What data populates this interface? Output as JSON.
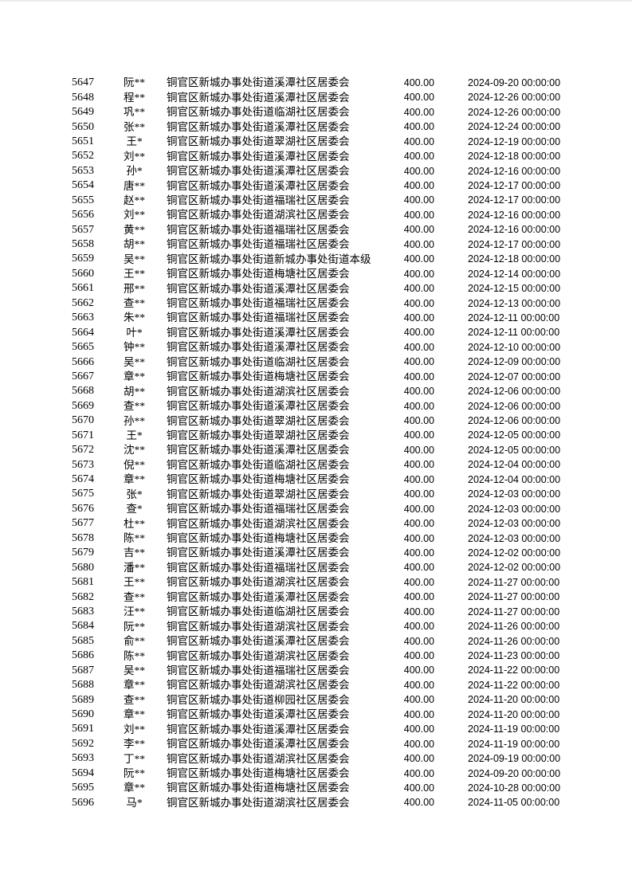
{
  "page": {
    "background_color": "#ffffff",
    "text_color": "#000000",
    "top_edge_color": "#ececec"
  },
  "table": {
    "rows": [
      {
        "id": "5647",
        "name": "阮**",
        "org": "铜官区新城办事处街道溪潭社区居委会",
        "amount": "400.00",
        "date": "2024-09-20 00:00:00"
      },
      {
        "id": "5648",
        "name": "程**",
        "org": "铜官区新城办事处街道溪潭社区居委会",
        "amount": "400.00",
        "date": "2024-12-26 00:00:00"
      },
      {
        "id": "5649",
        "name": "巩**",
        "org": "铜官区新城办事处街道临湖社区居委会",
        "amount": "400.00",
        "date": "2024-12-26 00:00:00"
      },
      {
        "id": "5650",
        "name": "张**",
        "org": "铜官区新城办事处街道溪潭社区居委会",
        "amount": "400.00",
        "date": "2024-12-24 00:00:00"
      },
      {
        "id": "5651",
        "name": "王*",
        "org": "铜官区新城办事处街道翠湖社区居委会",
        "amount": "400.00",
        "date": "2024-12-19 00:00:00"
      },
      {
        "id": "5652",
        "name": "刘**",
        "org": "铜官区新城办事处街道溪潭社区居委会",
        "amount": "400.00",
        "date": "2024-12-18 00:00:00"
      },
      {
        "id": "5653",
        "name": "孙*",
        "org": "铜官区新城办事处街道溪潭社区居委会",
        "amount": "400.00",
        "date": "2024-12-16 00:00:00"
      },
      {
        "id": "5654",
        "name": "唐**",
        "org": "铜官区新城办事处街道溪潭社区居委会",
        "amount": "400.00",
        "date": "2024-12-17 00:00:00"
      },
      {
        "id": "5655",
        "name": "赵**",
        "org": "铜官区新城办事处街道福瑞社区居委会",
        "amount": "400.00",
        "date": "2024-12-17 00:00:00"
      },
      {
        "id": "5656",
        "name": "刘**",
        "org": "铜官区新城办事处街道湖滨社区居委会",
        "amount": "400.00",
        "date": "2024-12-16 00:00:00"
      },
      {
        "id": "5657",
        "name": "黄**",
        "org": "铜官区新城办事处街道福瑞社区居委会",
        "amount": "400.00",
        "date": "2024-12-16 00:00:00"
      },
      {
        "id": "5658",
        "name": "胡**",
        "org": "铜官区新城办事处街道福瑞社区居委会",
        "amount": "400.00",
        "date": "2024-12-17 00:00:00"
      },
      {
        "id": "5659",
        "name": "吴**",
        "org": "铜官区新城办事处街道新城办事处街道本级",
        "amount": "400.00",
        "date": "2024-12-18 00:00:00"
      },
      {
        "id": "5660",
        "name": "王**",
        "org": "铜官区新城办事处街道梅塘社区居委会",
        "amount": "400.00",
        "date": "2024-12-14 00:00:00"
      },
      {
        "id": "5661",
        "name": "邢**",
        "org": "铜官区新城办事处街道溪潭社区居委会",
        "amount": "400.00",
        "date": "2024-12-15 00:00:00"
      },
      {
        "id": "5662",
        "name": "查**",
        "org": "铜官区新城办事处街道福瑞社区居委会",
        "amount": "400.00",
        "date": "2024-12-13 00:00:00"
      },
      {
        "id": "5663",
        "name": "朱**",
        "org": "铜官区新城办事处街道福瑞社区居委会",
        "amount": "400.00",
        "date": "2024-12-11 00:00:00"
      },
      {
        "id": "5664",
        "name": "叶*",
        "org": "铜官区新城办事处街道溪潭社区居委会",
        "amount": "400.00",
        "date": "2024-12-11 00:00:00"
      },
      {
        "id": "5665",
        "name": "钟**",
        "org": "铜官区新城办事处街道溪潭社区居委会",
        "amount": "400.00",
        "date": "2024-12-10 00:00:00"
      },
      {
        "id": "5666",
        "name": "吴**",
        "org": "铜官区新城办事处街道临湖社区居委会",
        "amount": "400.00",
        "date": "2024-12-09 00:00:00"
      },
      {
        "id": "5667",
        "name": "章**",
        "org": "铜官区新城办事处街道梅塘社区居委会",
        "amount": "400.00",
        "date": "2024-12-07 00:00:00"
      },
      {
        "id": "5668",
        "name": "胡**",
        "org": "铜官区新城办事处街道湖滨社区居委会",
        "amount": "400.00",
        "date": "2024-12-06 00:00:00"
      },
      {
        "id": "5669",
        "name": "查**",
        "org": "铜官区新城办事处街道溪潭社区居委会",
        "amount": "400.00",
        "date": "2024-12-06 00:00:00"
      },
      {
        "id": "5670",
        "name": "孙**",
        "org": "铜官区新城办事处街道翠湖社区居委会",
        "amount": "400.00",
        "date": "2024-12-06 00:00:00"
      },
      {
        "id": "5671",
        "name": "王*",
        "org": "铜官区新城办事处街道翠湖社区居委会",
        "amount": "400.00",
        "date": "2024-12-05 00:00:00"
      },
      {
        "id": "5672",
        "name": "沈**",
        "org": "铜官区新城办事处街道溪潭社区居委会",
        "amount": "400.00",
        "date": "2024-12-05 00:00:00"
      },
      {
        "id": "5673",
        "name": "倪**",
        "org": "铜官区新城办事处街道临湖社区居委会",
        "amount": "400.00",
        "date": "2024-12-04 00:00:00"
      },
      {
        "id": "5674",
        "name": "章**",
        "org": "铜官区新城办事处街道梅塘社区居委会",
        "amount": "400.00",
        "date": "2024-12-04 00:00:00"
      },
      {
        "id": "5675",
        "name": "张*",
        "org": "铜官区新城办事处街道翠湖社区居委会",
        "amount": "400.00",
        "date": "2024-12-03 00:00:00"
      },
      {
        "id": "5676",
        "name": "查*",
        "org": "铜官区新城办事处街道福瑞社区居委会",
        "amount": "400.00",
        "date": "2024-12-03 00:00:00"
      },
      {
        "id": "5677",
        "name": "杜**",
        "org": "铜官区新城办事处街道湖滨社区居委会",
        "amount": "400.00",
        "date": "2024-12-03 00:00:00"
      },
      {
        "id": "5678",
        "name": "陈**",
        "org": "铜官区新城办事处街道梅塘社区居委会",
        "amount": "400.00",
        "date": "2024-12-03 00:00:00"
      },
      {
        "id": "5679",
        "name": "吉**",
        "org": "铜官区新城办事处街道溪潭社区居委会",
        "amount": "400.00",
        "date": "2024-12-02 00:00:00"
      },
      {
        "id": "5680",
        "name": "潘**",
        "org": "铜官区新城办事处街道福瑞社区居委会",
        "amount": "400.00",
        "date": "2024-12-02 00:00:00"
      },
      {
        "id": "5681",
        "name": "王**",
        "org": "铜官区新城办事处街道湖滨社区居委会",
        "amount": "400.00",
        "date": "2024-11-27 00:00:00"
      },
      {
        "id": "5682",
        "name": "查**",
        "org": "铜官区新城办事处街道溪潭社区居委会",
        "amount": "400.00",
        "date": "2024-11-27 00:00:00"
      },
      {
        "id": "5683",
        "name": "汪**",
        "org": "铜官区新城办事处街道临湖社区居委会",
        "amount": "400.00",
        "date": "2024-11-27 00:00:00"
      },
      {
        "id": "5684",
        "name": "阮**",
        "org": "铜官区新城办事处街道湖滨社区居委会",
        "amount": "400.00",
        "date": "2024-11-26 00:00:00"
      },
      {
        "id": "5685",
        "name": "俞**",
        "org": "铜官区新城办事处街道溪潭社区居委会",
        "amount": "400.00",
        "date": "2024-11-26 00:00:00"
      },
      {
        "id": "5686",
        "name": "陈**",
        "org": "铜官区新城办事处街道湖滨社区居委会",
        "amount": "400.00",
        "date": "2024-11-23 00:00:00"
      },
      {
        "id": "5687",
        "name": "吴**",
        "org": "铜官区新城办事处街道福瑞社区居委会",
        "amount": "400.00",
        "date": "2024-11-22 00:00:00"
      },
      {
        "id": "5688",
        "name": "章**",
        "org": "铜官区新城办事处街道湖滨社区居委会",
        "amount": "400.00",
        "date": "2024-11-22 00:00:00"
      },
      {
        "id": "5689",
        "name": "查**",
        "org": "铜官区新城办事处街道柳园社区居委会",
        "amount": "400.00",
        "date": "2024-11-20 00:00:00"
      },
      {
        "id": "5690",
        "name": "章**",
        "org": "铜官区新城办事处街道溪潭社区居委会",
        "amount": "400.00",
        "date": "2024-11-20 00:00:00"
      },
      {
        "id": "5691",
        "name": "刘**",
        "org": "铜官区新城办事处街道溪潭社区居委会",
        "amount": "400.00",
        "date": "2024-11-19 00:00:00"
      },
      {
        "id": "5692",
        "name": "李**",
        "org": "铜官区新城办事处街道溪潭社区居委会",
        "amount": "400.00",
        "date": "2024-11-19 00:00:00"
      },
      {
        "id": "5693",
        "name": "丁**",
        "org": "铜官区新城办事处街道湖滨社区居委会",
        "amount": "400.00",
        "date": "2024-09-19 00:00:00"
      },
      {
        "id": "5694",
        "name": "阮**",
        "org": "铜官区新城办事处街道梅塘社区居委会",
        "amount": "400.00",
        "date": "2024-09-20 00:00:00"
      },
      {
        "id": "5695",
        "name": "章**",
        "org": "铜官区新城办事处街道梅塘社区居委会",
        "amount": "400.00",
        "date": "2024-10-28 00:00:00"
      },
      {
        "id": "5696",
        "name": "马*",
        "org": "铜官区新城办事处街道湖滨社区居委会",
        "amount": "400.00",
        "date": "2024-11-05 00:00:00"
      }
    ]
  }
}
